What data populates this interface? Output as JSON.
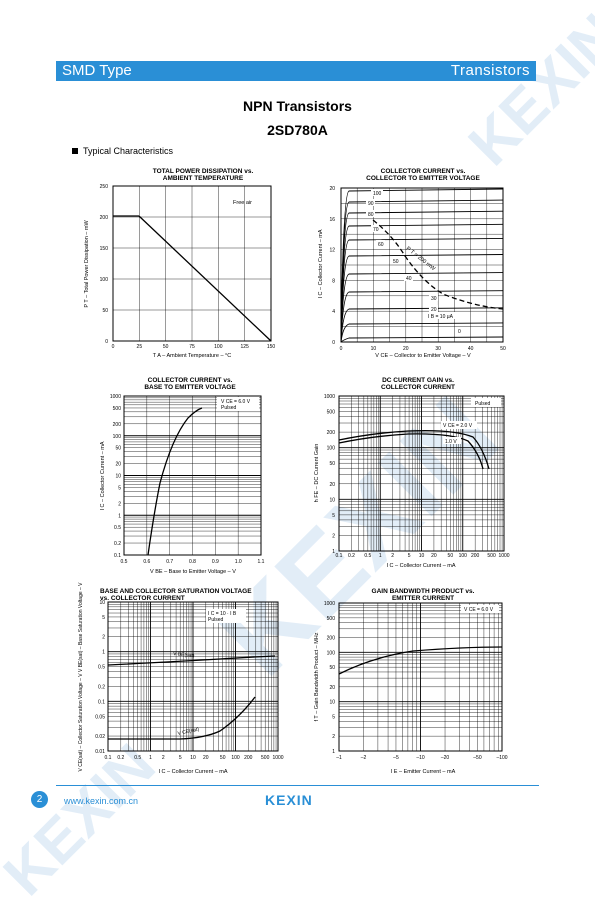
{
  "header": {
    "left": "SMD Type",
    "right": "Transistors"
  },
  "watermark": "KEXIN",
  "title": {
    "line1": "NPN  Transistors",
    "line2": "2SD780A"
  },
  "section": "Typical  Characteristics",
  "charts": {
    "pd": {
      "title1": "TOTAL POWER DISSIPATION  vs.",
      "title2": "AMBIENT TEMPERATURE",
      "note": "Free air",
      "ylabel": "P T – Total Power Dissipation – mW",
      "xlabel": "T A – Ambient Temperature – °C",
      "xticks": [
        "0",
        "25",
        "50",
        "75",
        "100",
        "125",
        "150"
      ],
      "yticks": [
        "0",
        "50",
        "100",
        "150",
        "200",
        "250"
      ]
    },
    "icvce": {
      "title1": "COLLECTOR CURRENT vs.",
      "title2": "COLLECTOR TO EMITTER VOLTAGE",
      "ylabel": "I C – Collector Current – mA",
      "xlabel": "V CE – Collector to Emitter Voltage – V",
      "xticks": [
        "0",
        "10",
        "20",
        "30",
        "40",
        "50"
      ],
      "yticks": [
        "0",
        "4",
        "8",
        "12",
        "16",
        "20"
      ],
      "curve_labels": [
        "100",
        "90",
        "80",
        "70",
        "60",
        "50",
        "40",
        "30",
        "20",
        "I B = 10 μA",
        "0"
      ],
      "pt_label": "P T = 200 mW"
    },
    "icvbe": {
      "title1": "COLLECTOR CURRENT vs.",
      "title2": "BASE TO EMITTER VOLTAGE",
      "note1": "V CE = 6.0 V",
      "note2": "Pulsed",
      "ylabel": "I C – Collector Current – mA",
      "xlabel": "V BE – Base to Emitter Voltage – V",
      "xticks": [
        "0.5",
        "0.6",
        "0.7",
        "0.8",
        "0.9",
        "1.0",
        "1.1"
      ],
      "yticks": [
        "1000",
        "500",
        "200",
        "100",
        "50",
        "20",
        "10",
        "5",
        "2",
        "1",
        "0.5",
        "0.2",
        "0.1"
      ]
    },
    "hfe": {
      "title1": "DC CURRENT GAIN vs.",
      "title2": "COLLECTOR CURRENT",
      "note1": "Pulsed",
      "note2": "V CE = 2.0 V",
      "note3": "1.0 V",
      "ylabel": "h FE – DC Current Gain",
      "xlabel": "I C – Collector Current – mA",
      "xticks": [
        "0.1",
        "0.2",
        "0.5",
        "1",
        "2",
        "5",
        "10",
        "20",
        "50",
        "100",
        "200",
        "500",
        "1000"
      ],
      "yticks": [
        "1000",
        "500",
        "200",
        "100",
        "50",
        "20",
        "10",
        "5",
        "2",
        "1"
      ]
    },
    "vsat": {
      "title1": "BASE AND COLLECTOR SATURATION VOLTAGE",
      "title2": "vs. COLLECTOR CURRENT",
      "note1": "I C = 10 · I B",
      "note2": "Pulsed",
      "lbl_be": "V BE(sat)",
      "lbl_ce": "V CE(sat)",
      "ylabel": "V CE(sat) – Collector Saturation Voltage – V  V BE(sat) – Base Saturation Voltage – V",
      "xlabel": "I C – Collector Current – mA",
      "xticks": [
        "0.1",
        "0.2",
        "0.5",
        "1",
        "2",
        "5",
        "10",
        "20",
        "50",
        "100",
        "200",
        "500",
        "1000"
      ],
      "yticks": [
        "10",
        "5",
        "2",
        "1",
        "0.5",
        "0.2",
        "0.1",
        "0.05",
        "0.02",
        "0.01"
      ]
    },
    "ft": {
      "title1": "GAIN BANDWIDTH PRODUCT vs.",
      "title2": "EMITTER CURRENT",
      "note1": "V CE = 6.0 V",
      "ylabel": "f T – Gain Bandwidth Product – MHz",
      "xlabel": "I E – Emitter Current – mA",
      "xticks": [
        "–1",
        "–2",
        "–5",
        "–10",
        "–20",
        "–50",
        "–100"
      ],
      "yticks": [
        "1000",
        "500",
        "200",
        "100",
        "50",
        "20",
        "10",
        "5",
        "2",
        "1"
      ]
    }
  },
  "footer": {
    "page": "2",
    "url": "www.kexin.com.cn",
    "logo": "KEXIN"
  }
}
